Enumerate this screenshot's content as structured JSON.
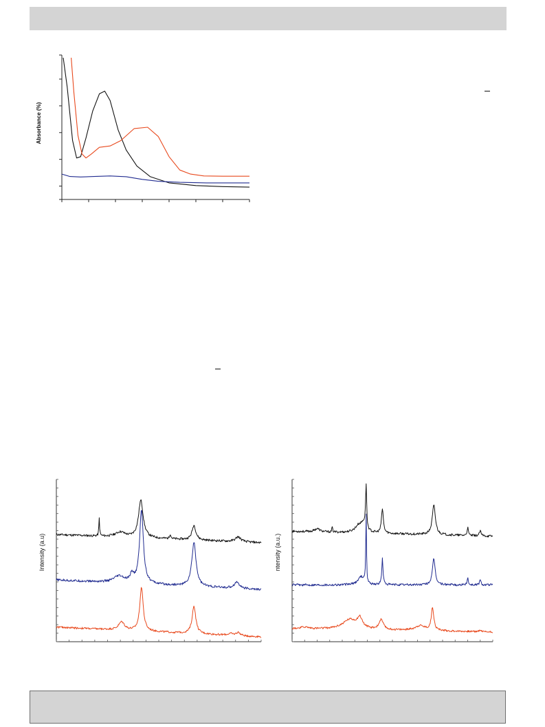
{
  "chart_data": [
    {
      "type": "line",
      "ylabel": "Absorbance (%)",
      "xlim": [
        0,
        7
      ],
      "ylim": [
        0,
        5.4
      ],
      "yticks": [
        0,
        0.5,
        1.5,
        2.5,
        3.5,
        4.5,
        5.4
      ],
      "xticks": [
        0,
        1,
        2,
        3,
        4,
        5,
        6,
        7
      ],
      "series": [
        {
          "color": "#111111",
          "points": [
            [
              0.05,
              5.3
            ],
            [
              0.2,
              4.2
            ],
            [
              0.4,
              2.2
            ],
            [
              0.55,
              1.55
            ],
            [
              0.7,
              1.6
            ],
            [
              0.9,
              2.3
            ],
            [
              1.15,
              3.3
            ],
            [
              1.4,
              3.95
            ],
            [
              1.6,
              4.05
            ],
            [
              1.8,
              3.7
            ],
            [
              2.1,
              2.6
            ],
            [
              2.4,
              1.85
            ],
            [
              2.8,
              1.25
            ],
            [
              3.3,
              0.85
            ],
            [
              4.0,
              0.62
            ],
            [
              5.0,
              0.52
            ],
            [
              6.0,
              0.48
            ],
            [
              7.0,
              0.46
            ]
          ]
        },
        {
          "color": "#e8481c",
          "points": [
            [
              0.35,
              5.3
            ],
            [
              0.45,
              4.0
            ],
            [
              0.6,
              2.4
            ],
            [
              0.75,
              1.7
            ],
            [
              0.9,
              1.55
            ],
            [
              1.1,
              1.7
            ],
            [
              1.4,
              1.95
            ],
            [
              1.8,
              2.0
            ],
            [
              2.2,
              2.2
            ],
            [
              2.7,
              2.65
            ],
            [
              3.2,
              2.7
            ],
            [
              3.6,
              2.35
            ],
            [
              4.0,
              1.6
            ],
            [
              4.4,
              1.1
            ],
            [
              4.8,
              0.95
            ],
            [
              5.3,
              0.88
            ],
            [
              6.0,
              0.87
            ],
            [
              7.0,
              0.87
            ]
          ]
        },
        {
          "color": "#1f2a8f",
          "points": [
            [
              0.0,
              0.95
            ],
            [
              0.3,
              0.86
            ],
            [
              0.7,
              0.84
            ],
            [
              1.2,
              0.86
            ],
            [
              1.8,
              0.88
            ],
            [
              2.4,
              0.85
            ],
            [
              3.0,
              0.75
            ],
            [
              3.6,
              0.68
            ],
            [
              4.4,
              0.64
            ],
            [
              5.4,
              0.62
            ],
            [
              6.4,
              0.62
            ],
            [
              7.0,
              0.62
            ]
          ]
        }
      ]
    },
    {
      "type": "line",
      "ylabel": "Intensity (a.u)",
      "xlim": [
        0,
        16
      ],
      "ylim": [
        0,
        1
      ],
      "xtick_count": 16,
      "ytick_count": 19,
      "series": [
        {
          "color": "#111111",
          "baseline": 0.66,
          "endpoint_drop": 0.05,
          "noise": 0.007,
          "peaks": [
            [
              3.35,
              0.11,
              0.035
            ],
            [
              5.0,
              0.03,
              0.45
            ],
            [
              6.6,
              0.23,
              0.22
            ],
            [
              8.9,
              0.03,
              0.06
            ],
            [
              10.75,
              0.09,
              0.18
            ],
            [
              14.2,
              0.03,
              0.25
            ]
          ]
        },
        {
          "color": "#1f2a8f",
          "baseline": 0.38,
          "endpoint_drop": 0.06,
          "noise": 0.007,
          "peaks": [
            [
              4.9,
              0.04,
              0.5
            ],
            [
              5.9,
              0.05,
              0.15
            ],
            [
              6.65,
              0.45,
              0.18
            ],
            [
              10.75,
              0.27,
              0.2
            ],
            [
              14.1,
              0.04,
              0.25
            ]
          ]
        },
        {
          "color": "#e8481c",
          "baseline": 0.09,
          "endpoint_drop": 0.06,
          "noise": 0.006,
          "peaks": [
            [
              5.1,
              0.05,
              0.28
            ],
            [
              6.65,
              0.27,
              0.16
            ],
            [
              10.75,
              0.17,
              0.17
            ],
            [
              13.6,
              0.01,
              0.22
            ],
            [
              14.2,
              0.02,
              0.2
            ]
          ]
        }
      ]
    },
    {
      "type": "line",
      "ylabel": "ntensity (a.u.)",
      "xlim": [
        0,
        16
      ],
      "ylim": [
        0,
        1
      ],
      "xtick_count": 16,
      "ytick_count": 19,
      "series": [
        {
          "color": "#111111",
          "baseline": 0.68,
          "endpoint_drop": 0.03,
          "noise": 0.007,
          "peaks": [
            [
              2.0,
              0.02,
              0.25
            ],
            [
              3.2,
              0.03,
              0.04
            ],
            [
              5.3,
              0.04,
              0.35
            ],
            [
              5.7,
              0.05,
              0.25
            ],
            [
              5.9,
              0.27,
              0.05
            ],
            [
              7.2,
              0.15,
              0.09
            ],
            [
              11.3,
              0.18,
              0.15
            ],
            [
              14.0,
              0.05,
              0.06
            ],
            [
              15.0,
              0.03,
              0.08
            ]
          ]
        },
        {
          "color": "#1f2a8f",
          "baseline": 0.35,
          "endpoint_drop": 0.0,
          "noise": 0.007,
          "peaks": [
            [
              5.5,
              0.05,
              0.3
            ],
            [
              5.9,
              0.42,
              0.035
            ],
            [
              7.2,
              0.16,
              0.06
            ],
            [
              11.3,
              0.16,
              0.13
            ],
            [
              14.0,
              0.05,
              0.05
            ],
            [
              15.0,
              0.03,
              0.07
            ]
          ]
        },
        {
          "color": "#e8481c",
          "baseline": 0.08,
          "endpoint_drop": 0.02,
          "noise": 0.006,
          "peaks": [
            [
              1.0,
              0.01,
              0.4
            ],
            [
              4.6,
              0.06,
              0.7
            ],
            [
              5.4,
              0.06,
              0.25
            ],
            [
              7.1,
              0.06,
              0.2
            ],
            [
              10.2,
              0.03,
              0.5
            ],
            [
              11.2,
              0.14,
              0.12
            ],
            [
              15.0,
              0.01,
              0.1
            ]
          ]
        }
      ]
    }
  ]
}
